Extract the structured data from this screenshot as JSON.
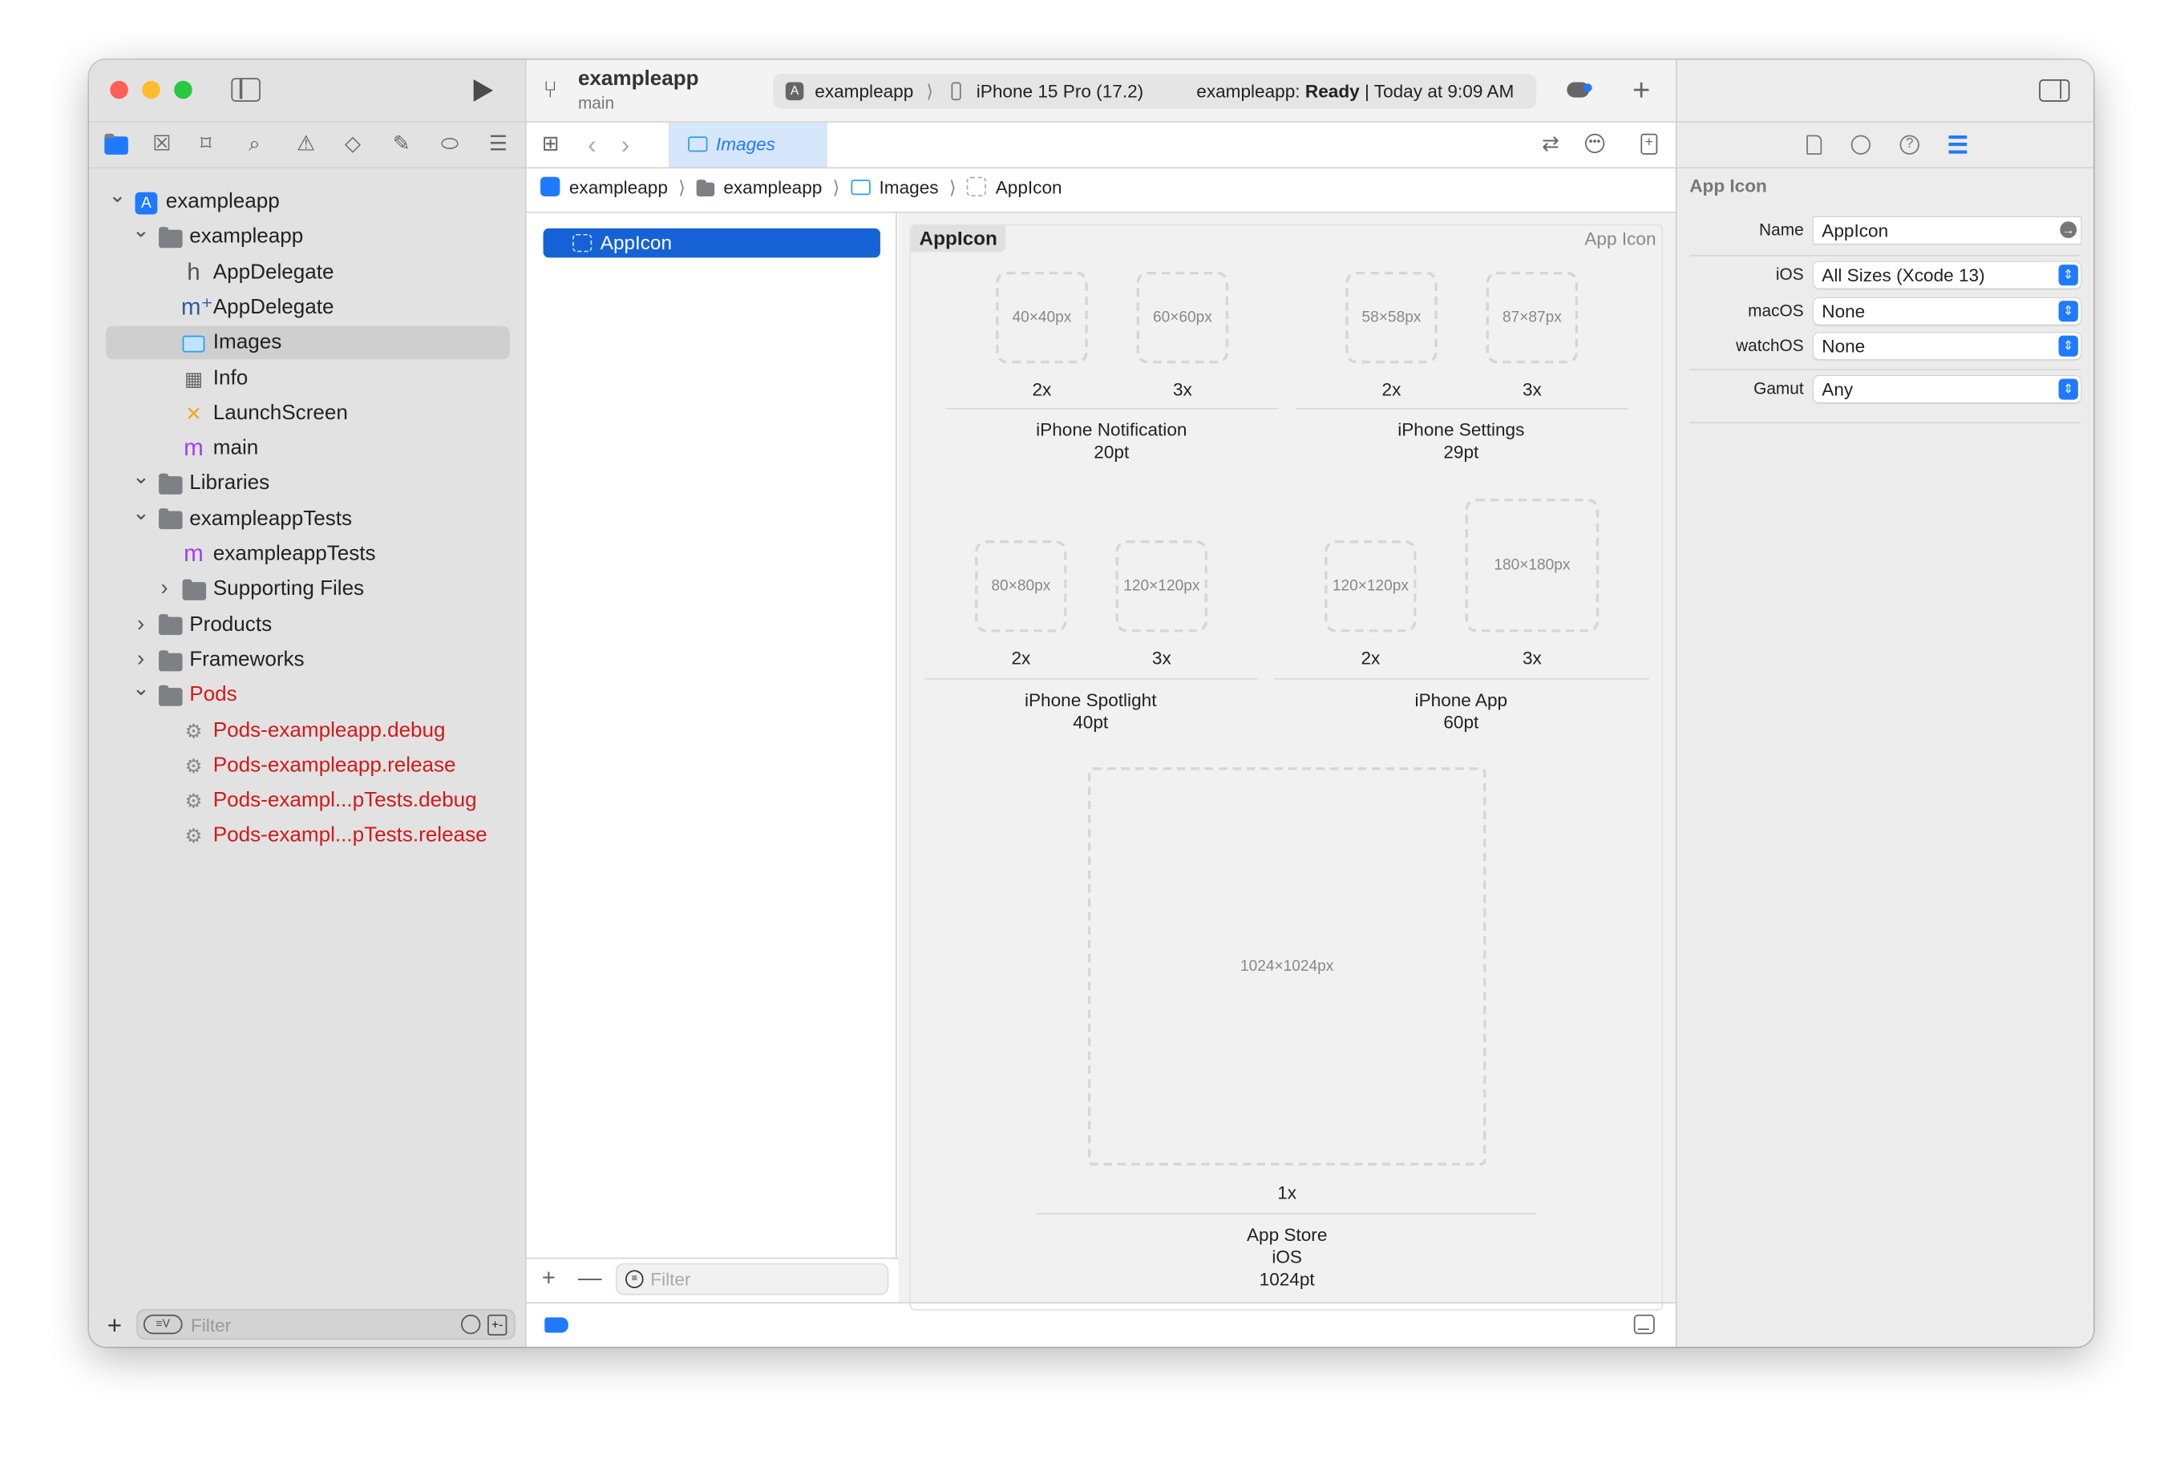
{
  "window": {
    "traffic_colors": {
      "close": "#ff5f57",
      "minimize": "#febc2e",
      "zoom": "#28c840"
    }
  },
  "toolbar": {
    "project": "exampleapp",
    "branch": "main",
    "scheme": "exampleapp",
    "destination": "iPhone 15 Pro (17.2)",
    "status_prefix": "exampleapp:",
    "status_state": "Ready",
    "status_sep": "|",
    "status_time": "Today at 9:09 AM",
    "add": "+"
  },
  "navigator": {
    "icons": [
      "folder-icon",
      "source-control-icon",
      "bookmark-icon",
      "search-icon",
      "warning-icon",
      "test-icon",
      "debug-icon",
      "breakpoint-icon",
      "report-icon"
    ],
    "items": [
      {
        "label": "exampleapp",
        "level": 0,
        "disclosure": "open",
        "icon": "app-project-icon"
      },
      {
        "label": "exampleapp",
        "level": 1,
        "disclosure": "open",
        "icon": "folder-icon"
      },
      {
        "label": "AppDelegate",
        "level": 2,
        "icon": "header-file-icon",
        "glyph": "h"
      },
      {
        "label": "AppDelegate",
        "level": 2,
        "icon": "objc-file-icon",
        "glyph": "m⁺"
      },
      {
        "label": "Images",
        "level": 2,
        "icon": "asset-catalog-icon",
        "selected": true
      },
      {
        "label": "Info",
        "level": 2,
        "icon": "plist-icon",
        "glyph": "▦"
      },
      {
        "label": "LaunchScreen",
        "level": 2,
        "icon": "storyboard-icon",
        "glyph": "✕"
      },
      {
        "label": "main",
        "level": 2,
        "icon": "objc-file-icon",
        "glyph": "m"
      },
      {
        "label": "Libraries",
        "level": 1,
        "disclosure": "open",
        "icon": "folder-icon"
      },
      {
        "label": "exampleappTests",
        "level": 1,
        "disclosure": "open",
        "icon": "folder-icon"
      },
      {
        "label": "exampleappTests",
        "level": 2,
        "icon": "objc-file-icon",
        "glyph": "m"
      },
      {
        "label": "Supporting Files",
        "level": 2,
        "disclosure": "closed",
        "icon": "folder-icon"
      },
      {
        "label": "Products",
        "level": 1,
        "disclosure": "closed",
        "icon": "folder-icon"
      },
      {
        "label": "Frameworks",
        "level": 1,
        "disclosure": "closed",
        "icon": "folder-icon"
      },
      {
        "label": "Pods",
        "level": 1,
        "disclosure": "open",
        "icon": "folder-icon",
        "red": true
      },
      {
        "label": "Pods-exampleapp.debug",
        "level": 2,
        "icon": "xcconfig-icon",
        "glyph": "⚙",
        "red": true
      },
      {
        "label": "Pods-exampleapp.release",
        "level": 2,
        "icon": "xcconfig-icon",
        "glyph": "⚙",
        "red": true
      },
      {
        "label": "Pods-exampl...pTests.debug",
        "level": 2,
        "icon": "xcconfig-icon",
        "glyph": "⚙",
        "red": true
      },
      {
        "label": "Pods-exampl...pTests.release",
        "level": 2,
        "icon": "xcconfig-icon",
        "glyph": "⚙",
        "red": true
      }
    ],
    "filter_placeholder": "Filter"
  },
  "editor": {
    "tab": "Images",
    "breadcrumb": [
      "exampleapp",
      "exampleapp",
      "Images",
      "AppIcon"
    ],
    "asset_list": [
      "AppIcon"
    ],
    "asset_filter_placeholder": "Filter",
    "set_title": "AppIcon",
    "set_type": "App Icon",
    "slots": [
      {
        "size": "40×40px",
        "scale": "2x"
      },
      {
        "size": "60×60px",
        "scale": "3x"
      },
      {
        "size": "58×58px",
        "scale": "2x"
      },
      {
        "size": "87×87px",
        "scale": "3x"
      },
      {
        "size": "80×80px",
        "scale": "2x"
      },
      {
        "size": "120×120px",
        "scale": "3x"
      },
      {
        "size": "120×120px",
        "scale": "2x"
      },
      {
        "size": "180×180px",
        "scale": "3x"
      },
      {
        "size": "1024×1024px",
        "scale": "1x"
      }
    ],
    "groups": [
      {
        "name": "iPhone Notification",
        "pt": "20pt"
      },
      {
        "name": "iPhone Settings",
        "pt": "29pt"
      },
      {
        "name": "iPhone Spotlight",
        "pt": "40pt"
      },
      {
        "name": "iPhone App",
        "pt": "60pt"
      },
      {
        "name": "App Store",
        "platform": "iOS",
        "pt": "1024pt"
      }
    ]
  },
  "inspector": {
    "title": "App Icon",
    "name_label": "Name",
    "name_value": "AppIcon",
    "ios_label": "iOS",
    "ios_value": "All Sizes (Xcode 13)",
    "macos_label": "macOS",
    "macos_value": "None",
    "watchos_label": "watchOS",
    "watchos_value": "None",
    "gamut_label": "Gamut",
    "gamut_value": "Any",
    "accent": "#1f7aff"
  }
}
